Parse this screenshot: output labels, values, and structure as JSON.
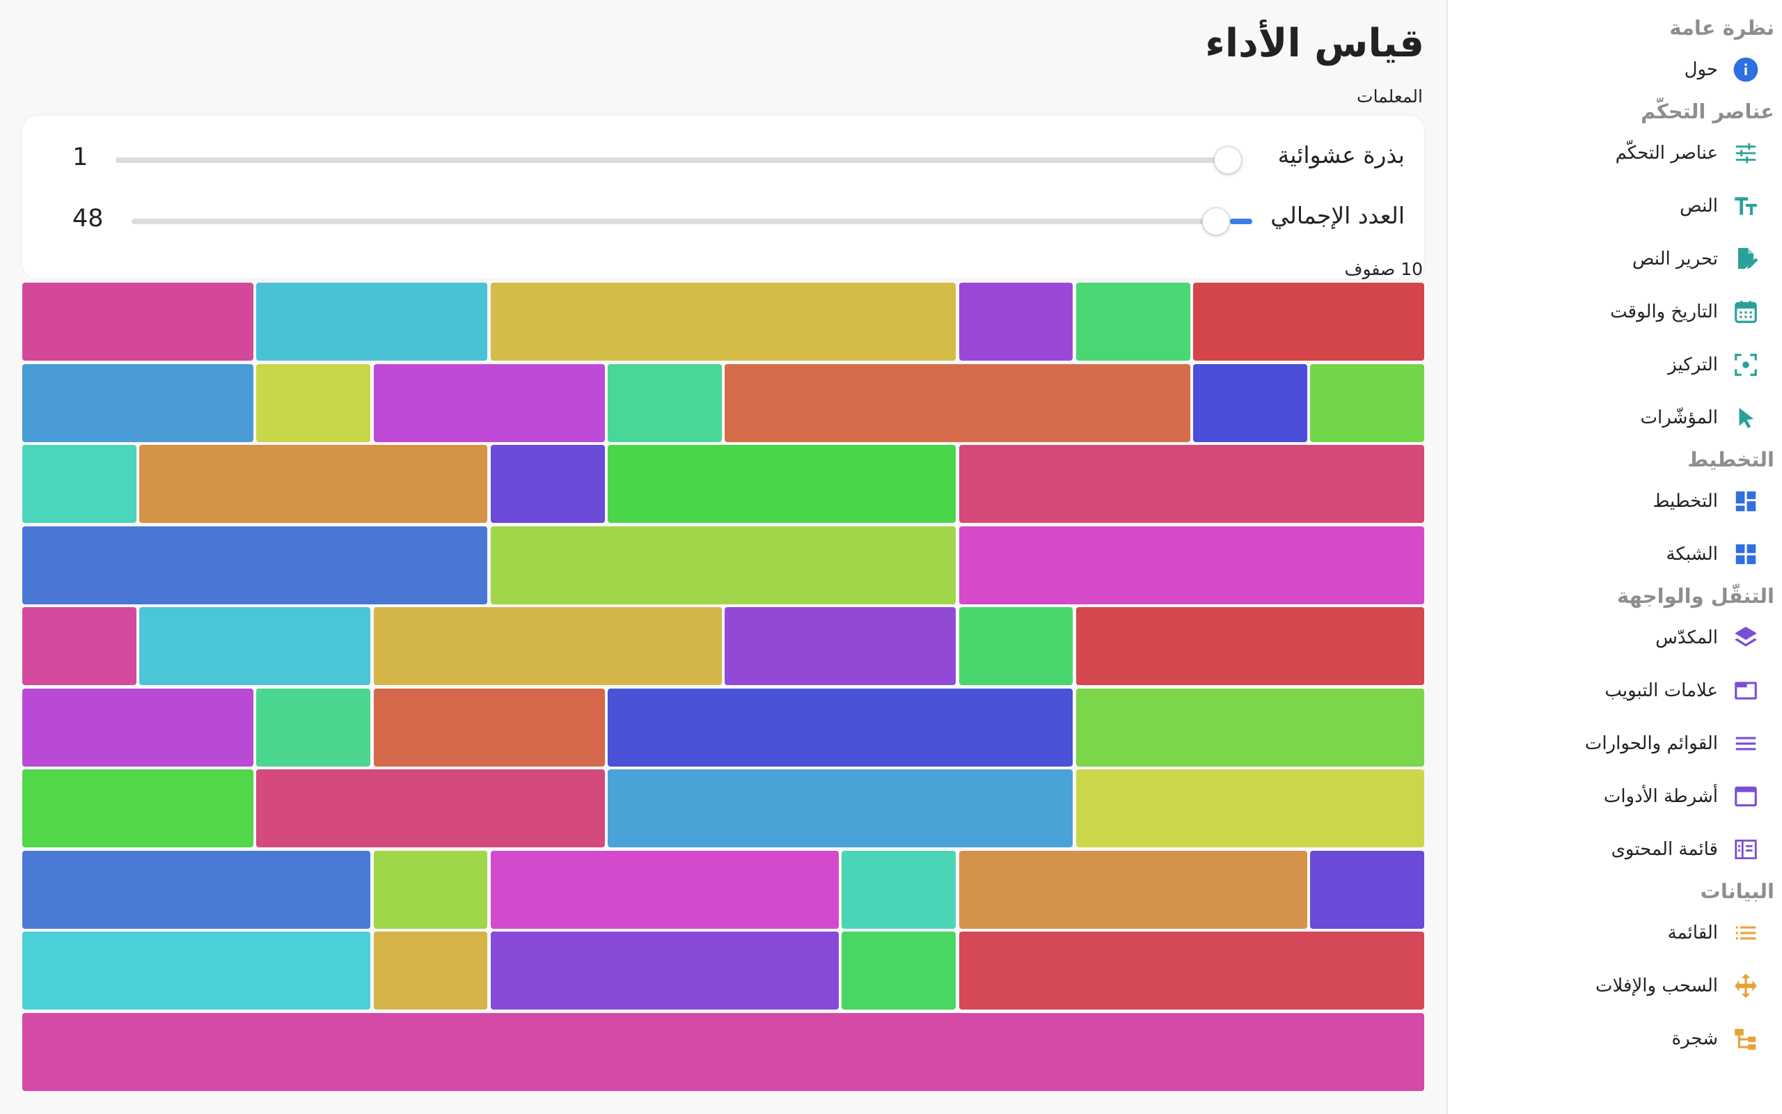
{
  "main": {
    "title": "قياس الأداء",
    "params_label": "المعلمات",
    "seed": {
      "label": "بذرة عشوائية",
      "value": "1",
      "level": 0.0
    },
    "count": {
      "label": "العدد الإجمالي",
      "value": "48",
      "level": 0.02
    },
    "rows_caption": "10 صفوف"
  },
  "sidebar": {
    "sections": [
      {
        "heading": "نظرة عامة",
        "items": [
          {
            "label": "حول",
            "icon": "info-icon",
            "color": "#2f6fe0"
          }
        ]
      },
      {
        "heading": "عناصر التحكّم",
        "items": [
          {
            "label": "عناصر التحكّم",
            "icon": "sliders-icon",
            "color": "#2aa198"
          },
          {
            "label": "النص",
            "icon": "text-icon",
            "color": "#2aa198"
          },
          {
            "label": "تحرير النص",
            "icon": "edit-document-icon",
            "color": "#2aa198"
          },
          {
            "label": "التاريخ والوقت",
            "icon": "calendar-icon",
            "color": "#2aa198"
          },
          {
            "label": "التركيز",
            "icon": "focus-icon",
            "color": "#2aa198"
          },
          {
            "label": "المؤشّرات",
            "icon": "pointer-icon",
            "color": "#2aa198"
          }
        ]
      },
      {
        "heading": "التخطيط",
        "items": [
          {
            "label": "التخطيط",
            "icon": "layout-icon",
            "color": "#2f6fe0"
          },
          {
            "label": "الشبكة",
            "icon": "grid-icon",
            "color": "#2f6fe0"
          }
        ]
      },
      {
        "heading": "التنقّل والواجهة",
        "items": [
          {
            "label": "المكدّس",
            "icon": "stack-icon",
            "color": "#7a4fd6"
          },
          {
            "label": "علامات التبويب",
            "icon": "tabs-icon",
            "color": "#7a4fd6"
          },
          {
            "label": "القوائم والحوارات",
            "icon": "menu-icon",
            "color": "#7a4fd6"
          },
          {
            "label": "أشرطة الأدوات",
            "icon": "toolbar-icon",
            "color": "#7a4fd6"
          },
          {
            "label": "قائمة المحتوى",
            "icon": "toc-icon",
            "color": "#7a4fd6"
          }
        ]
      },
      {
        "heading": "البيانات",
        "items": [
          {
            "label": "القائمة",
            "icon": "list-icon",
            "color": "#e8a23a"
          },
          {
            "label": "السحب والإفلات",
            "icon": "drag-icon",
            "color": "#e8a23a"
          },
          {
            "label": "شجرة",
            "icon": "tree-icon",
            "color": "#e8a23a"
          }
        ]
      }
    ]
  },
  "blocks": [
    [
      {
        "span": 2,
        "color": "#d44549"
      },
      {
        "span": 1,
        "color": "#4ad672"
      },
      {
        "span": 1,
        "color": "#9949d6"
      },
      {
        "span": 4,
        "color": "#d4bc48"
      },
      {
        "span": 2,
        "color": "#4ac2d6"
      },
      {
        "span": 2,
        "color": "#d4489a"
      }
    ],
    [
      {
        "span": 1,
        "color": "#72d64a"
      },
      {
        "span": 1,
        "color": "#4a4ed9"
      },
      {
        "span": 4,
        "color": "#d56d4a"
      },
      {
        "span": 1,
        "color": "#4ad697"
      },
      {
        "span": 2,
        "color": "#c04ad8"
      },
      {
        "span": 1,
        "color": "#c9d64a"
      },
      {
        "span": 2,
        "color": "#4a9ad6"
      }
    ],
    [
      {
        "span": 4,
        "color": "#d44978"
      },
      {
        "span": 3,
        "color": "#4ad64a"
      },
      {
        "span": 1,
        "color": "#6a4ad6"
      },
      {
        "span": 3,
        "color": "#d59249"
      },
      {
        "span": 1,
        "color": "#4ad6bc"
      }
    ],
    [
      {
        "span": 4,
        "color": "#d44ac8"
      },
      {
        "span": 4,
        "color": "#a2d64a"
      },
      {
        "span": 4,
        "color": "#4a76d6"
      }
    ],
    [
      {
        "span": 3,
        "color": "#d4484e"
      },
      {
        "span": 1,
        "color": "#4ad66c"
      },
      {
        "span": 2,
        "color": "#924ad6"
      },
      {
        "span": 3,
        "color": "#d4b648"
      },
      {
        "span": 2,
        "color": "#4ac6d6"
      },
      {
        "span": 1,
        "color": "#d44a9e"
      }
    ],
    [
      {
        "span": 3,
        "color": "#7bd64a"
      },
      {
        "span": 4,
        "color": "#4a52d6"
      },
      {
        "span": 2,
        "color": "#d5674a"
      },
      {
        "span": 1,
        "color": "#4ad68f"
      },
      {
        "span": 2,
        "color": "#b84ad6"
      }
    ],
    [
      {
        "span": 3,
        "color": "#ccd64a"
      },
      {
        "span": 4,
        "color": "#4aa2d6"
      },
      {
        "span": 3,
        "color": "#d44a7c"
      },
      {
        "span": 2,
        "color": "#52d64a"
      }
    ],
    [
      {
        "span": 1,
        "color": "#6a4ad6"
      },
      {
        "span": 3,
        "color": "#d5924a"
      },
      {
        "span": 1,
        "color": "#4ad6b6"
      },
      {
        "span": 3,
        "color": "#d44acc"
      },
      {
        "span": 1,
        "color": "#a0d64a"
      },
      {
        "span": 3,
        "color": "#4a7ad6"
      }
    ],
    [
      {
        "span": 4,
        "color": "#d44858"
      },
      {
        "span": 1,
        "color": "#4ad662"
      },
      {
        "span": 3,
        "color": "#8a4ad8"
      },
      {
        "span": 1,
        "color": "#d4b448"
      },
      {
        "span": 3,
        "color": "#4ad0d6"
      }
    ],
    [
      {
        "span": 12,
        "color": "#d44aa6"
      }
    ]
  ]
}
